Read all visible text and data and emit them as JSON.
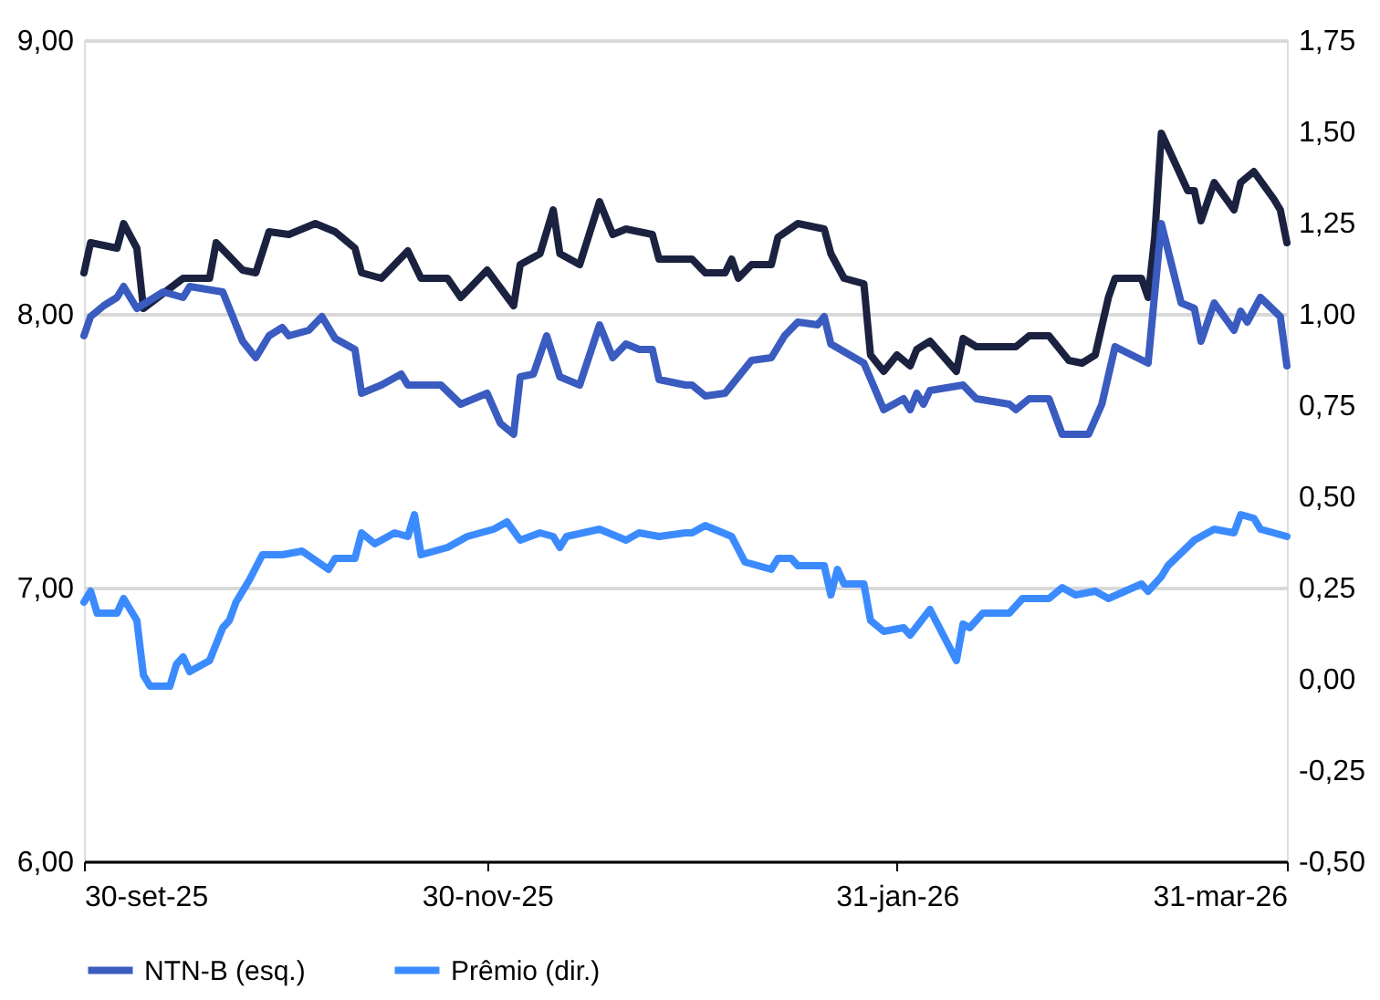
{
  "chart_data": {
    "type": "line",
    "xlim": [
      "2025-09-30",
      "2026-03-31"
    ],
    "xticks": [
      {
        "value": "2025-09-30",
        "label": "30-set-25"
      },
      {
        "value": "2025-11-30",
        "label": "30-nov-25"
      },
      {
        "value": "2026-01-31",
        "label": "31-jan-26"
      },
      {
        "value": "2026-03-31",
        "label": "31-mar-26"
      }
    ],
    "ylim": [
      6,
      9
    ],
    "yticks": [
      {
        "value": 6,
        "label": "6,00"
      },
      {
        "value": 7,
        "label": "7,00"
      },
      {
        "value": 8,
        "label": "8,00"
      },
      {
        "value": 9,
        "label": "9,00"
      }
    ],
    "y2lim": [
      -0.5,
      1.75
    ],
    "y2ticks": [
      {
        "value": -0.5,
        "label": "-0,50"
      },
      {
        "value": -0.25,
        "label": "-0,25"
      },
      {
        "value": 0,
        "label": "0,00"
      },
      {
        "value": 0.25,
        "label": "0,25"
      },
      {
        "value": 0.5,
        "label": "0,50"
      },
      {
        "value": 0.75,
        "label": "0,75"
      },
      {
        "value": 1,
        "label": "1,00"
      },
      {
        "value": 1.25,
        "label": "1,25"
      },
      {
        "value": 1.5,
        "label": "1,50"
      },
      {
        "value": 1.75,
        "label": "1,75"
      }
    ],
    "grid": "y",
    "legend": "bottom",
    "series": [
      {
        "color": "#1b2240",
        "axis": "y",
        "x": [
          "2025-09-30",
          "2025-10-01",
          "2025-10-05",
          "2025-10-06",
          "2025-10-08",
          "2025-10-09",
          "2025-10-15",
          "2025-10-19",
          "2025-10-20",
          "2025-10-24",
          "2025-10-26",
          "2025-10-28",
          "2025-10-31",
          "2025-11-04",
          "2025-11-07",
          "2025-11-10",
          "2025-11-11",
          "2025-11-14",
          "2025-11-18",
          "2025-11-20",
          "2025-11-24",
          "2025-11-26",
          "2025-11-30",
          "2025-12-04",
          "2025-12-05",
          "2025-12-08",
          "2025-12-10",
          "2025-12-11",
          "2025-12-14",
          "2025-12-17",
          "2025-12-19",
          "2025-12-21",
          "2025-12-25",
          "2025-12-26",
          "2025-12-31",
          "2026-01-02",
          "2026-01-05",
          "2026-01-06",
          "2026-01-07",
          "2026-01-09",
          "2026-01-12",
          "2026-01-13",
          "2026-01-16",
          "2026-01-20",
          "2026-01-21",
          "2026-01-23",
          "2026-01-26",
          "2026-01-27",
          "2026-01-29",
          "2026-01-31",
          "2026-02-02",
          "2026-02-03",
          "2026-02-05",
          "2026-02-09",
          "2026-02-10",
          "2026-02-12",
          "2026-02-18",
          "2026-02-20",
          "2026-02-23",
          "2026-02-26",
          "2026-02-28",
          "2026-03-02",
          "2026-03-04",
          "2026-03-05",
          "2026-03-09",
          "2026-03-10",
          "2026-03-11",
          "2026-03-12",
          "2026-03-16",
          "2026-03-17",
          "2026-03-18",
          "2026-03-20",
          "2026-03-23",
          "2026-03-24",
          "2026-03-26",
          "2026-03-29",
          "2026-03-30",
          "2026-03-31"
        ],
        "values": [
          8.15,
          8.26,
          8.24,
          8.33,
          8.24,
          8.02,
          8.13,
          8.13,
          8.26,
          8.16,
          8.15,
          8.3,
          8.29,
          8.33,
          8.3,
          8.24,
          8.15,
          8.13,
          8.23,
          8.13,
          8.13,
          8.06,
          8.16,
          8.03,
          8.18,
          8.22,
          8.38,
          8.22,
          8.18,
          8.41,
          8.29,
          8.31,
          8.29,
          8.2,
          8.2,
          8.15,
          8.15,
          8.2,
          8.13,
          8.18,
          8.18,
          8.28,
          8.33,
          8.31,
          8.22,
          8.13,
          8.11,
          7.85,
          7.79,
          7.85,
          7.81,
          7.87,
          7.9,
          7.79,
          7.91,
          7.88,
          7.88,
          7.92,
          7.92,
          7.83,
          7.82,
          7.85,
          8.06,
          8.13,
          8.13,
          8.06,
          8.28,
          8.66,
          8.45,
          8.45,
          8.34,
          8.48,
          8.38,
          8.48,
          8.52,
          8.42,
          8.38,
          8.26
        ]
      },
      {
        "name": "NTN-B (esq.)",
        "color": "#3a5bbf",
        "axis": "y",
        "x": [
          "2025-09-30",
          "2025-10-01",
          "2025-10-03",
          "2025-10-05",
          "2025-10-06",
          "2025-10-08",
          "2025-10-12",
          "2025-10-15",
          "2025-10-16",
          "2025-10-21",
          "2025-10-24",
          "2025-10-26",
          "2025-10-28",
          "2025-10-30",
          "2025-10-31",
          "2025-11-03",
          "2025-11-05",
          "2025-11-07",
          "2025-11-10",
          "2025-11-11",
          "2025-11-14",
          "2025-11-17",
          "2025-11-18",
          "2025-11-23",
          "2025-11-26",
          "2025-11-30",
          "2025-12-02",
          "2025-12-04",
          "2025-12-05",
          "2025-12-07",
          "2025-12-09",
          "2025-12-11",
          "2025-12-14",
          "2025-12-17",
          "2025-12-19",
          "2025-12-21",
          "2025-12-23",
          "2025-12-25",
          "2025-12-26",
          "2025-12-30",
          "2025-12-31",
          "2026-01-02",
          "2026-01-05",
          "2026-01-07",
          "2026-01-09",
          "2026-01-12",
          "2026-01-14",
          "2026-01-16",
          "2026-01-19",
          "2026-01-20",
          "2026-01-21",
          "2026-01-26",
          "2026-01-29",
          "2026-02-01",
          "2026-02-02",
          "2026-02-03",
          "2026-02-04",
          "2026-02-05",
          "2026-02-10",
          "2026-02-12",
          "2026-02-17",
          "2026-02-18",
          "2026-02-20",
          "2026-02-23",
          "2026-02-25",
          "2026-03-01",
          "2026-03-03",
          "2026-03-05",
          "2026-03-10",
          "2026-03-12",
          "2026-03-15",
          "2026-03-17",
          "2026-03-18",
          "2026-03-20",
          "2026-03-23",
          "2026-03-24",
          "2026-03-25",
          "2026-03-27",
          "2026-03-30",
          "2026-03-31"
        ],
        "values": [
          7.92,
          7.99,
          8.03,
          8.06,
          8.1,
          8.02,
          8.08,
          8.06,
          8.1,
          8.08,
          7.9,
          7.84,
          7.92,
          7.95,
          7.92,
          7.94,
          7.99,
          7.91,
          7.87,
          7.71,
          7.74,
          7.78,
          7.74,
          7.74,
          7.67,
          7.71,
          7.6,
          7.56,
          7.77,
          7.78,
          7.92,
          7.77,
          7.74,
          7.96,
          7.84,
          7.89,
          7.87,
          7.87,
          7.76,
          7.74,
          7.74,
          7.7,
          7.71,
          7.77,
          7.83,
          7.84,
          7.92,
          7.97,
          7.96,
          7.99,
          7.89,
          7.82,
          7.65,
          7.69,
          7.65,
          7.71,
          7.67,
          7.72,
          7.74,
          7.69,
          7.67,
          7.65,
          7.69,
          7.69,
          7.56,
          7.56,
          7.67,
          7.88,
          7.82,
          8.33,
          8.04,
          8.02,
          7.9,
          8.04,
          7.94,
          8.01,
          7.97,
          8.06,
          7.99,
          7.81
        ]
      },
      {
        "name": "Prêmio (dir.)",
        "color": "#3b8bff",
        "axis": "y2",
        "x": [
          "2025-09-30",
          "2025-10-01",
          "2025-10-02",
          "2025-10-05",
          "2025-10-06",
          "2025-10-08",
          "2025-10-09",
          "2025-10-10",
          "2025-10-13",
          "2025-10-14",
          "2025-10-15",
          "2025-10-16",
          "2025-10-19",
          "2025-10-21",
          "2025-10-22",
          "2025-10-23",
          "2025-10-25",
          "2025-10-27",
          "2025-10-30",
          "2025-11-02",
          "2025-11-06",
          "2025-11-07",
          "2025-11-10",
          "2025-11-11",
          "2025-11-13",
          "2025-11-16",
          "2025-11-18",
          "2025-11-19",
          "2025-11-20",
          "2025-11-24",
          "2025-11-27",
          "2025-12-01",
          "2025-12-03",
          "2025-12-05",
          "2025-12-08",
          "2025-12-10",
          "2025-12-11",
          "2025-12-12",
          "2025-12-17",
          "2025-12-21",
          "2025-12-23",
          "2025-12-26",
          "2025-12-30",
          "2025-12-31",
          "2026-01-02",
          "2026-01-06",
          "2026-01-08",
          "2026-01-12",
          "2026-01-13",
          "2026-01-15",
          "2026-01-16",
          "2026-01-20",
          "2026-01-21",
          "2026-01-22",
          "2026-01-23",
          "2026-01-26",
          "2026-01-27",
          "2026-01-29",
          "2026-02-01",
          "2026-02-02",
          "2026-02-05",
          "2026-02-09",
          "2026-02-10",
          "2026-02-11",
          "2026-02-13",
          "2026-02-17",
          "2026-02-19",
          "2026-02-23",
          "2026-02-25",
          "2026-02-27",
          "2026-03-02",
          "2026-03-04",
          "2026-03-09",
          "2026-03-10",
          "2026-03-12",
          "2026-03-13",
          "2026-03-17",
          "2026-03-20",
          "2026-03-23",
          "2026-03-24",
          "2026-03-26",
          "2026-03-27",
          "2026-03-31"
        ],
        "values": [
          0.21,
          0.24,
          0.18,
          0.18,
          0.22,
          0.16,
          0.01,
          -0.02,
          -0.02,
          0.04,
          0.06,
          0.02,
          0.05,
          0.14,
          0.16,
          0.21,
          0.27,
          0.34,
          0.34,
          0.35,
          0.3,
          0.33,
          0.33,
          0.4,
          0.37,
          0.4,
          0.39,
          0.45,
          0.34,
          0.36,
          0.39,
          0.41,
          0.43,
          0.38,
          0.4,
          0.39,
          0.36,
          0.39,
          0.41,
          0.38,
          0.4,
          0.39,
          0.4,
          0.4,
          0.42,
          0.39,
          0.32,
          0.3,
          0.33,
          0.33,
          0.31,
          0.31,
          0.23,
          0.3,
          0.26,
          0.26,
          0.16,
          0.13,
          0.14,
          0.12,
          0.19,
          0.05,
          0.15,
          0.14,
          0.18,
          0.18,
          0.22,
          0.22,
          0.25,
          0.23,
          0.24,
          0.22,
          0.26,
          0.24,
          0.28,
          0.31,
          0.38,
          0.41,
          0.4,
          0.45,
          0.44,
          0.41,
          0.39
        ]
      }
    ]
  }
}
